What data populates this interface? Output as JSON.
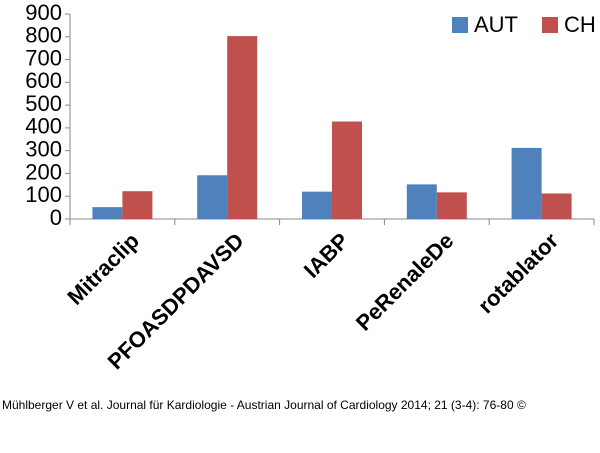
{
  "chart_data": {
    "type": "bar",
    "categories": [
      "Mitraclip",
      "PFOASDPDAVSD",
      "IABP",
      "PeRenaleDe",
      "rotablator"
    ],
    "series": [
      {
        "name": "AUT",
        "color": "#4f81bd",
        "values": [
          52,
          192,
          120,
          152,
          312
        ]
      },
      {
        "name": "CH",
        "color": "#c0504d",
        "values": [
          122,
          803,
          428,
          117,
          112
        ]
      }
    ],
    "ylim": [
      0,
      900
    ],
    "yticks": [
      0,
      100,
      200,
      300,
      400,
      500,
      600,
      700,
      800,
      900
    ],
    "grid": false,
    "legend": "top-right",
    "caption": "Mühlberger V et al. Journal für Kardiologie - Austrian Journal of Cardiology 2014; 21 (3-4): 76-80 ©"
  }
}
